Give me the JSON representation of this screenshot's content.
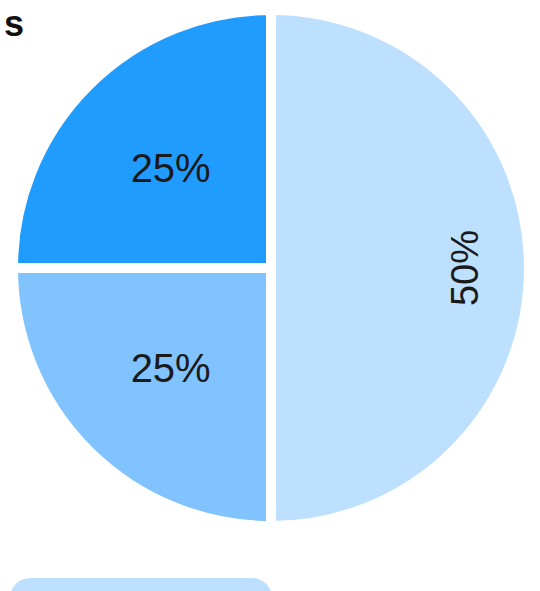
{
  "chart_data": {
    "type": "pie",
    "title": "s",
    "categories": [
      null,
      null,
      null
    ],
    "values": [
      25,
      25,
      50
    ],
    "value_labels": [
      "25%",
      "25%",
      "50%"
    ],
    "colors": [
      "#209cff",
      "#80c3ff",
      "#bde0ff"
    ],
    "data_labels": true
  }
}
